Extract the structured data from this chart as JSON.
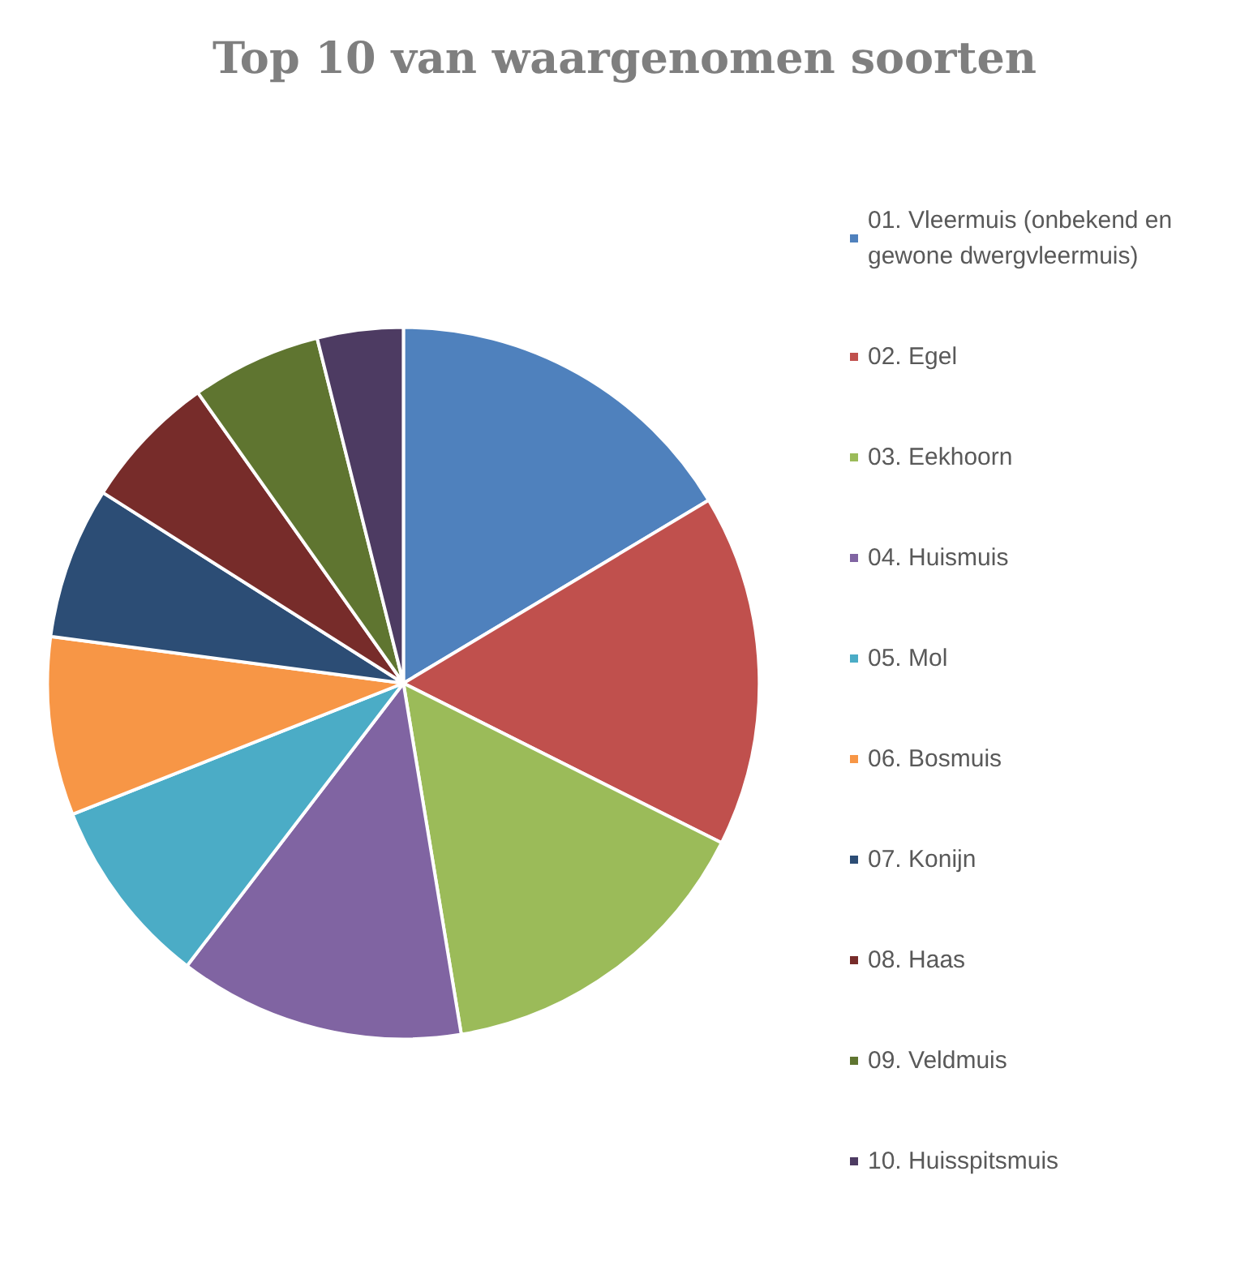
{
  "chart_data": {
    "type": "pie",
    "title": "Top 10 van waargenomen soorten",
    "categories": [
      "01. Vleermuis (onbekend en gewone dwergvleermuis)",
      "02. Egel",
      "03. Eekhoorn",
      "04. Huismuis",
      "05. Mol",
      "06. Bosmuis",
      "07. Konijn",
      "08. Haas",
      "09. Veldmuis",
      "10. Huisspitsmuis"
    ],
    "values": [
      16.4,
      16.0,
      15.0,
      13.0,
      8.6,
      8.1,
      6.9,
      6.2,
      5.9,
      3.9
    ],
    "colors": [
      "#4f81bd",
      "#c0504d",
      "#9bbb59",
      "#8064a2",
      "#4bacc6",
      "#f79646",
      "#2c4d75",
      "#772c2a",
      "#5f7530",
      "#4d3b62"
    ],
    "legend": "right"
  }
}
